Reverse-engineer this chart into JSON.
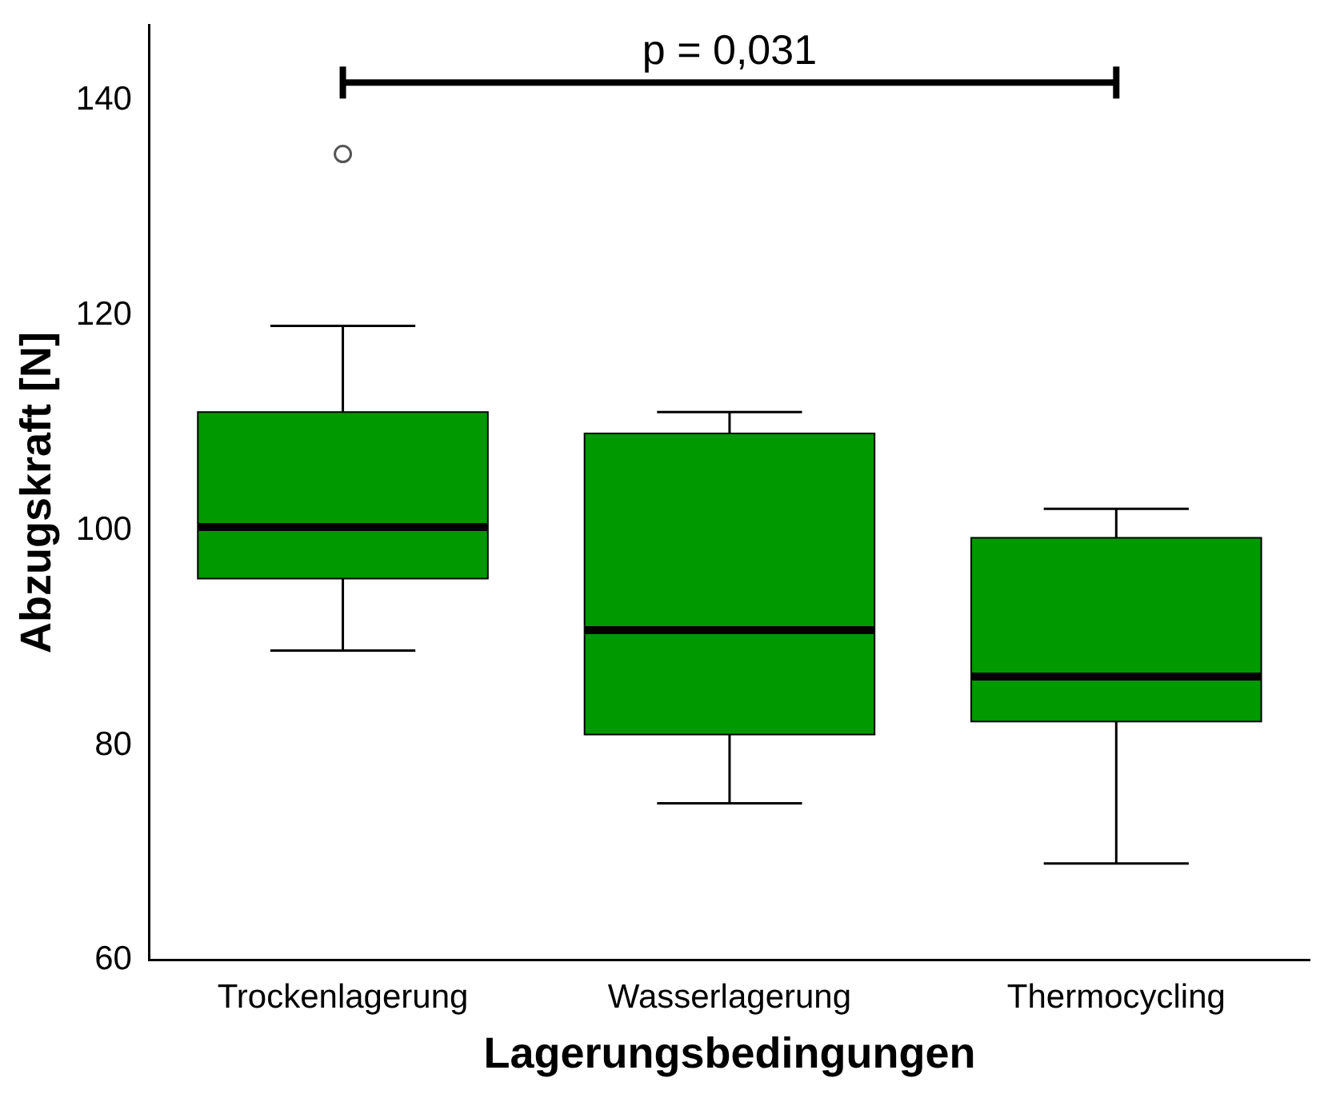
{
  "chart_data": {
    "type": "box",
    "xlabel": "Lagerungsbedingungen",
    "ylabel": "Abzugskraft [N]",
    "categories": [
      "Trockenlagerung",
      "Wasserlagerung",
      "Thermocycling"
    ],
    "color": "#009900",
    "boxes": [
      {
        "low": 88.8,
        "q1": 95.5,
        "median": 100.3,
        "q3": 111,
        "high": 119,
        "outliers": [
          135
        ]
      },
      {
        "low": 74.6,
        "q1": 81,
        "median": 90.7,
        "q3": 109,
        "high": 111
      },
      {
        "low": 69,
        "q1": 82.2,
        "median": 86.4,
        "q3": 99.3,
        "high": 102
      }
    ],
    "ylim": [
      60,
      147
    ],
    "yticks": [
      60,
      80,
      100,
      120,
      140
    ],
    "grid": false,
    "legend": false,
    "annotations": [
      "p = 0,031"
    ]
  }
}
